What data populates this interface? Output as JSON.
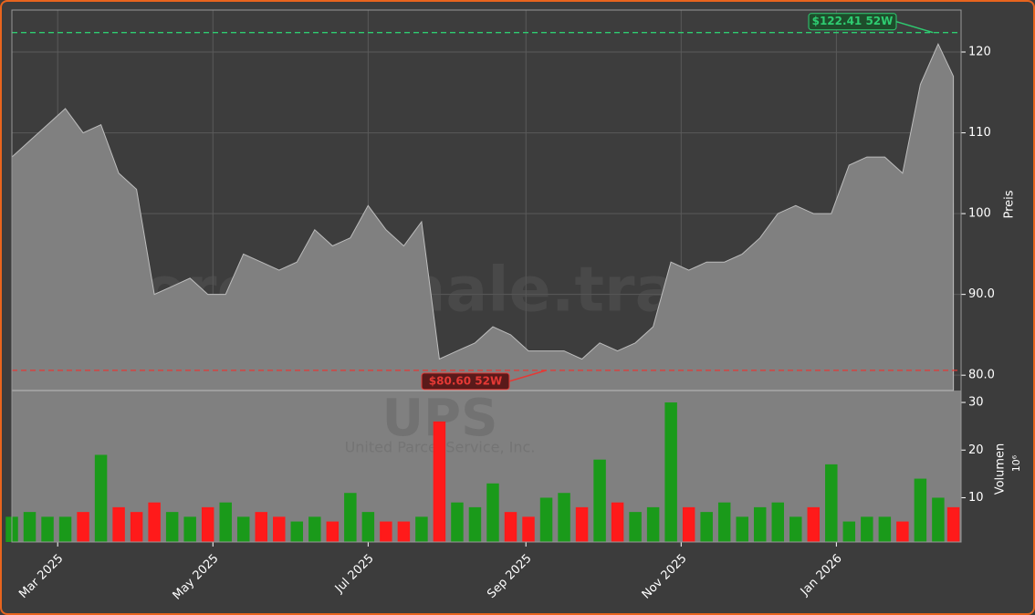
{
  "chart_data": {
    "type": "area",
    "title": "UPS",
    "subtitle": "United Parcel Service, Inc.",
    "watermark": "forexsignale.trade",
    "y_label": "Preis",
    "y2_label": "Volumen",
    "y2_unit": "10⁶",
    "x": [
      0,
      7,
      14,
      21,
      28,
      35,
      42,
      49,
      56,
      63,
      70,
      77,
      84,
      91,
      98,
      105,
      112,
      119,
      126,
      133,
      140,
      147,
      154,
      161,
      168,
      175,
      182,
      189,
      196,
      203,
      210,
      217,
      224,
      231,
      238,
      245,
      252,
      259,
      266,
      273,
      280,
      287,
      294,
      301,
      308,
      315,
      322,
      329,
      336,
      343,
      350,
      357,
      364,
      370
    ],
    "xlim": [
      0,
      373
    ],
    "xticks": [
      {
        "value": 18,
        "label": "Mar 2025"
      },
      {
        "value": 79,
        "label": "May 2025"
      },
      {
        "value": 140,
        "label": "Jul 2025"
      },
      {
        "value": 202,
        "label": "Sep 2025"
      },
      {
        "value": 263,
        "label": "Nov 2025"
      },
      {
        "value": 324,
        "label": "Jan 2026"
      }
    ],
    "series": [
      {
        "name": "Preis",
        "color": "#808080",
        "values": [
          107,
          109,
          111,
          113,
          110,
          111,
          105,
          103,
          90,
          91,
          92,
          90,
          90,
          95,
          94,
          93,
          94,
          98,
          96,
          97,
          101,
          98,
          96,
          99,
          82,
          83,
          84,
          86,
          85,
          83,
          83,
          83,
          82,
          84,
          83,
          84,
          86,
          94,
          93,
          94,
          94,
          95,
          97,
          100,
          101,
          100,
          100,
          106,
          107,
          107,
          105,
          116,
          121,
          117
        ]
      },
      {
        "name": "Volumen",
        "axis": "y2",
        "up_color": "#1a9a1a",
        "down_color": "#ff1a1a",
        "values": [
          6,
          7,
          6,
          6,
          7,
          19,
          8,
          7,
          9,
          7,
          6,
          8,
          9,
          6,
          7,
          6,
          5,
          6,
          5,
          11,
          7,
          5,
          5,
          6,
          26,
          9,
          8,
          13,
          7,
          6,
          10,
          11,
          8,
          18,
          9,
          7,
          8,
          30,
          8,
          7,
          9,
          6,
          8,
          9,
          6,
          8,
          17,
          5,
          6,
          6,
          5,
          14,
          10,
          8
        ]
      }
    ],
    "ylim": [
      78.1,
      125.2
    ],
    "yticks": [
      {
        "value": 80,
        "label": "80.0"
      },
      {
        "value": 90,
        "label": "90.0"
      },
      100,
      110,
      120
    ],
    "y2lim": [
      0.7,
      32.5
    ],
    "y2ticks": [
      10,
      20,
      30
    ],
    "grid": true,
    "annotations": [
      {
        "label": "$122.41 52W",
        "value": 122.41,
        "color": "#2ecc71"
      },
      {
        "label": "$80.60 52W",
        "value": 80.6,
        "color": "#e53935"
      }
    ]
  }
}
